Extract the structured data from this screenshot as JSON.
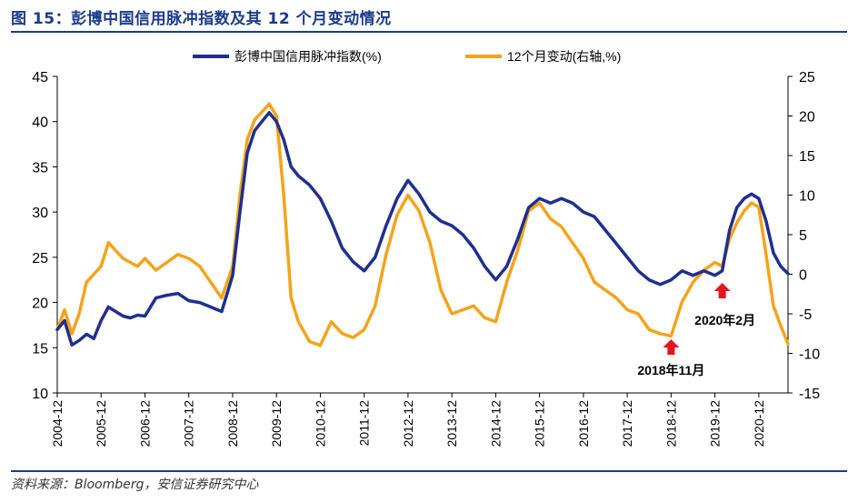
{
  "figure": {
    "title": "图 15：彭博中国信用脉冲指数及其 12 个月变动情况",
    "source": "资料来源：Bloomberg，安信证券研究中心"
  },
  "colors": {
    "series1": "#1f2f8f",
    "series2": "#f5a31a",
    "arrow": "#e8141b",
    "axis": "#000000"
  },
  "chart_data": {
    "type": "line",
    "x_tick_labels": [
      "2004-12",
      "2005-12",
      "2006-12",
      "2007-12",
      "2008-12",
      "2009-12",
      "2010-12",
      "2011-12",
      "2012-12",
      "2013-12",
      "2014-12",
      "2015-12",
      "2016-12",
      "2017-12",
      "2018-12",
      "2019-12",
      "2020-12"
    ],
    "x_range": [
      "2004-12",
      "2021-08"
    ],
    "ylim_left": [
      10,
      45
    ],
    "ylim_right": [
      -15,
      25
    ],
    "yticks_left": [
      10,
      15,
      20,
      25,
      30,
      35,
      40,
      45
    ],
    "yticks_right": [
      -15,
      -10,
      -5,
      0,
      5,
      10,
      15,
      20,
      25
    ],
    "legend_position": "top",
    "series": [
      {
        "name": "彭博中国信用脉冲指数(%)",
        "axis": "left",
        "points": [
          [
            "2004-12",
            17.0
          ],
          [
            "2005-02",
            18.0
          ],
          [
            "2005-04",
            15.3
          ],
          [
            "2005-06",
            15.8
          ],
          [
            "2005-08",
            16.5
          ],
          [
            "2005-10",
            16.0
          ],
          [
            "2005-12",
            18.0
          ],
          [
            "2006-02",
            19.5
          ],
          [
            "2006-04",
            19.0
          ],
          [
            "2006-06",
            18.5
          ],
          [
            "2006-08",
            18.3
          ],
          [
            "2006-10",
            18.6
          ],
          [
            "2006-12",
            18.5
          ],
          [
            "2007-03",
            20.5
          ],
          [
            "2007-06",
            20.8
          ],
          [
            "2007-09",
            21.0
          ],
          [
            "2007-12",
            20.2
          ],
          [
            "2008-03",
            20.0
          ],
          [
            "2008-06",
            19.5
          ],
          [
            "2008-09",
            19.0
          ],
          [
            "2008-12",
            23.0
          ],
          [
            "2009-02",
            30.0
          ],
          [
            "2009-04",
            36.5
          ],
          [
            "2009-06",
            39.0
          ],
          [
            "2009-08",
            40.0
          ],
          [
            "2009-10",
            41.0
          ],
          [
            "2009-12",
            40.0
          ],
          [
            "2010-02",
            38.0
          ],
          [
            "2010-04",
            35.0
          ],
          [
            "2010-06",
            34.0
          ],
          [
            "2010-09",
            33.0
          ],
          [
            "2010-12",
            31.5
          ],
          [
            "2011-03",
            29.0
          ],
          [
            "2011-06",
            26.0
          ],
          [
            "2011-09",
            24.5
          ],
          [
            "2011-12",
            23.5
          ],
          [
            "2012-03",
            25.0
          ],
          [
            "2012-06",
            28.5
          ],
          [
            "2012-09",
            31.5
          ],
          [
            "2012-12",
            33.5
          ],
          [
            "2013-03",
            32.0
          ],
          [
            "2013-06",
            30.0
          ],
          [
            "2013-09",
            29.0
          ],
          [
            "2013-12",
            28.5
          ],
          [
            "2014-03",
            27.5
          ],
          [
            "2014-06",
            26.0
          ],
          [
            "2014-09",
            24.0
          ],
          [
            "2014-12",
            22.5
          ],
          [
            "2015-03",
            24.0
          ],
          [
            "2015-06",
            27.0
          ],
          [
            "2015-09",
            30.5
          ],
          [
            "2015-12",
            31.5
          ],
          [
            "2016-03",
            31.0
          ],
          [
            "2016-06",
            31.5
          ],
          [
            "2016-09",
            31.0
          ],
          [
            "2016-12",
            30.0
          ],
          [
            "2017-03",
            29.5
          ],
          [
            "2017-06",
            28.0
          ],
          [
            "2017-09",
            26.5
          ],
          [
            "2017-12",
            25.0
          ],
          [
            "2018-03",
            23.5
          ],
          [
            "2018-06",
            22.5
          ],
          [
            "2018-09",
            22.0
          ],
          [
            "2018-12",
            22.5
          ],
          [
            "2019-03",
            23.5
          ],
          [
            "2019-06",
            23.0
          ],
          [
            "2019-09",
            23.5
          ],
          [
            "2019-12",
            23.0
          ],
          [
            "2020-02",
            23.5
          ],
          [
            "2020-04",
            28.0
          ],
          [
            "2020-06",
            30.5
          ],
          [
            "2020-08",
            31.5
          ],
          [
            "2020-10",
            32.0
          ],
          [
            "2020-12",
            31.5
          ],
          [
            "2021-02",
            29.0
          ],
          [
            "2021-04",
            25.5
          ],
          [
            "2021-06",
            24.0
          ],
          [
            "2021-08",
            23.2
          ]
        ]
      },
      {
        "name": "12个月变动(右轴,%)",
        "axis": "right",
        "points": [
          [
            "2004-12",
            -7.0
          ],
          [
            "2005-02",
            -4.5
          ],
          [
            "2005-04",
            -7.5
          ],
          [
            "2005-06",
            -5.0
          ],
          [
            "2005-08",
            -1.0
          ],
          [
            "2005-10",
            0.0
          ],
          [
            "2005-12",
            1.0
          ],
          [
            "2006-02",
            4.0
          ],
          [
            "2006-04",
            3.0
          ],
          [
            "2006-06",
            2.0
          ],
          [
            "2006-08",
            1.5
          ],
          [
            "2006-10",
            1.0
          ],
          [
            "2006-12",
            2.0
          ],
          [
            "2007-03",
            0.5
          ],
          [
            "2007-06",
            1.5
          ],
          [
            "2007-09",
            2.5
          ],
          [
            "2007-12",
            2.0
          ],
          [
            "2008-03",
            1.0
          ],
          [
            "2008-06",
            -1.0
          ],
          [
            "2008-09",
            -3.0
          ],
          [
            "2008-12",
            1.0
          ],
          [
            "2009-02",
            10.0
          ],
          [
            "2009-04",
            17.0
          ],
          [
            "2009-06",
            19.5
          ],
          [
            "2009-08",
            20.5
          ],
          [
            "2009-10",
            21.5
          ],
          [
            "2009-12",
            20.0
          ],
          [
            "2010-02",
            10.0
          ],
          [
            "2010-04",
            -3.0
          ],
          [
            "2010-06",
            -6.0
          ],
          [
            "2010-09",
            -8.5
          ],
          [
            "2010-12",
            -9.0
          ],
          [
            "2011-03",
            -6.0
          ],
          [
            "2011-06",
            -7.5
          ],
          [
            "2011-09",
            -8.0
          ],
          [
            "2011-12",
            -7.0
          ],
          [
            "2012-03",
            -4.0
          ],
          [
            "2012-06",
            2.5
          ],
          [
            "2012-09",
            7.5
          ],
          [
            "2012-12",
            10.0
          ],
          [
            "2013-03",
            8.0
          ],
          [
            "2013-06",
            4.0
          ],
          [
            "2013-09",
            -2.0
          ],
          [
            "2013-12",
            -5.0
          ],
          [
            "2014-03",
            -4.5
          ],
          [
            "2014-06",
            -4.0
          ],
          [
            "2014-09",
            -5.5
          ],
          [
            "2014-12",
            -6.0
          ],
          [
            "2015-03",
            -1.0
          ],
          [
            "2015-06",
            3.0
          ],
          [
            "2015-09",
            8.0
          ],
          [
            "2015-12",
            9.0
          ],
          [
            "2016-03",
            7.0
          ],
          [
            "2016-06",
            6.0
          ],
          [
            "2016-09",
            4.0
          ],
          [
            "2016-12",
            2.0
          ],
          [
            "2017-03",
            -1.0
          ],
          [
            "2017-06",
            -2.0
          ],
          [
            "2017-09",
            -3.0
          ],
          [
            "2017-12",
            -4.5
          ],
          [
            "2018-03",
            -5.0
          ],
          [
            "2018-06",
            -7.0
          ],
          [
            "2018-09",
            -7.5
          ],
          [
            "2018-12",
            -7.8
          ],
          [
            "2019-03",
            -3.5
          ],
          [
            "2019-06",
            -1.0
          ],
          [
            "2019-09",
            0.5
          ],
          [
            "2019-12",
            1.5
          ],
          [
            "2020-02",
            1.0
          ],
          [
            "2020-04",
            4.5
          ],
          [
            "2020-06",
            6.5
          ],
          [
            "2020-08",
            8.0
          ],
          [
            "2020-10",
            9.0
          ],
          [
            "2020-12",
            8.5
          ],
          [
            "2021-02",
            2.5
          ],
          [
            "2021-04",
            -4.0
          ],
          [
            "2021-06",
            -6.5
          ],
          [
            "2021-08",
            -8.8
          ]
        ]
      }
    ],
    "annotations": [
      {
        "label": "2018年11月",
        "date": "2018-12",
        "marker": "up-arrow"
      },
      {
        "label": "2020年2月",
        "date": "2020-02",
        "marker": "up-arrow"
      }
    ]
  }
}
